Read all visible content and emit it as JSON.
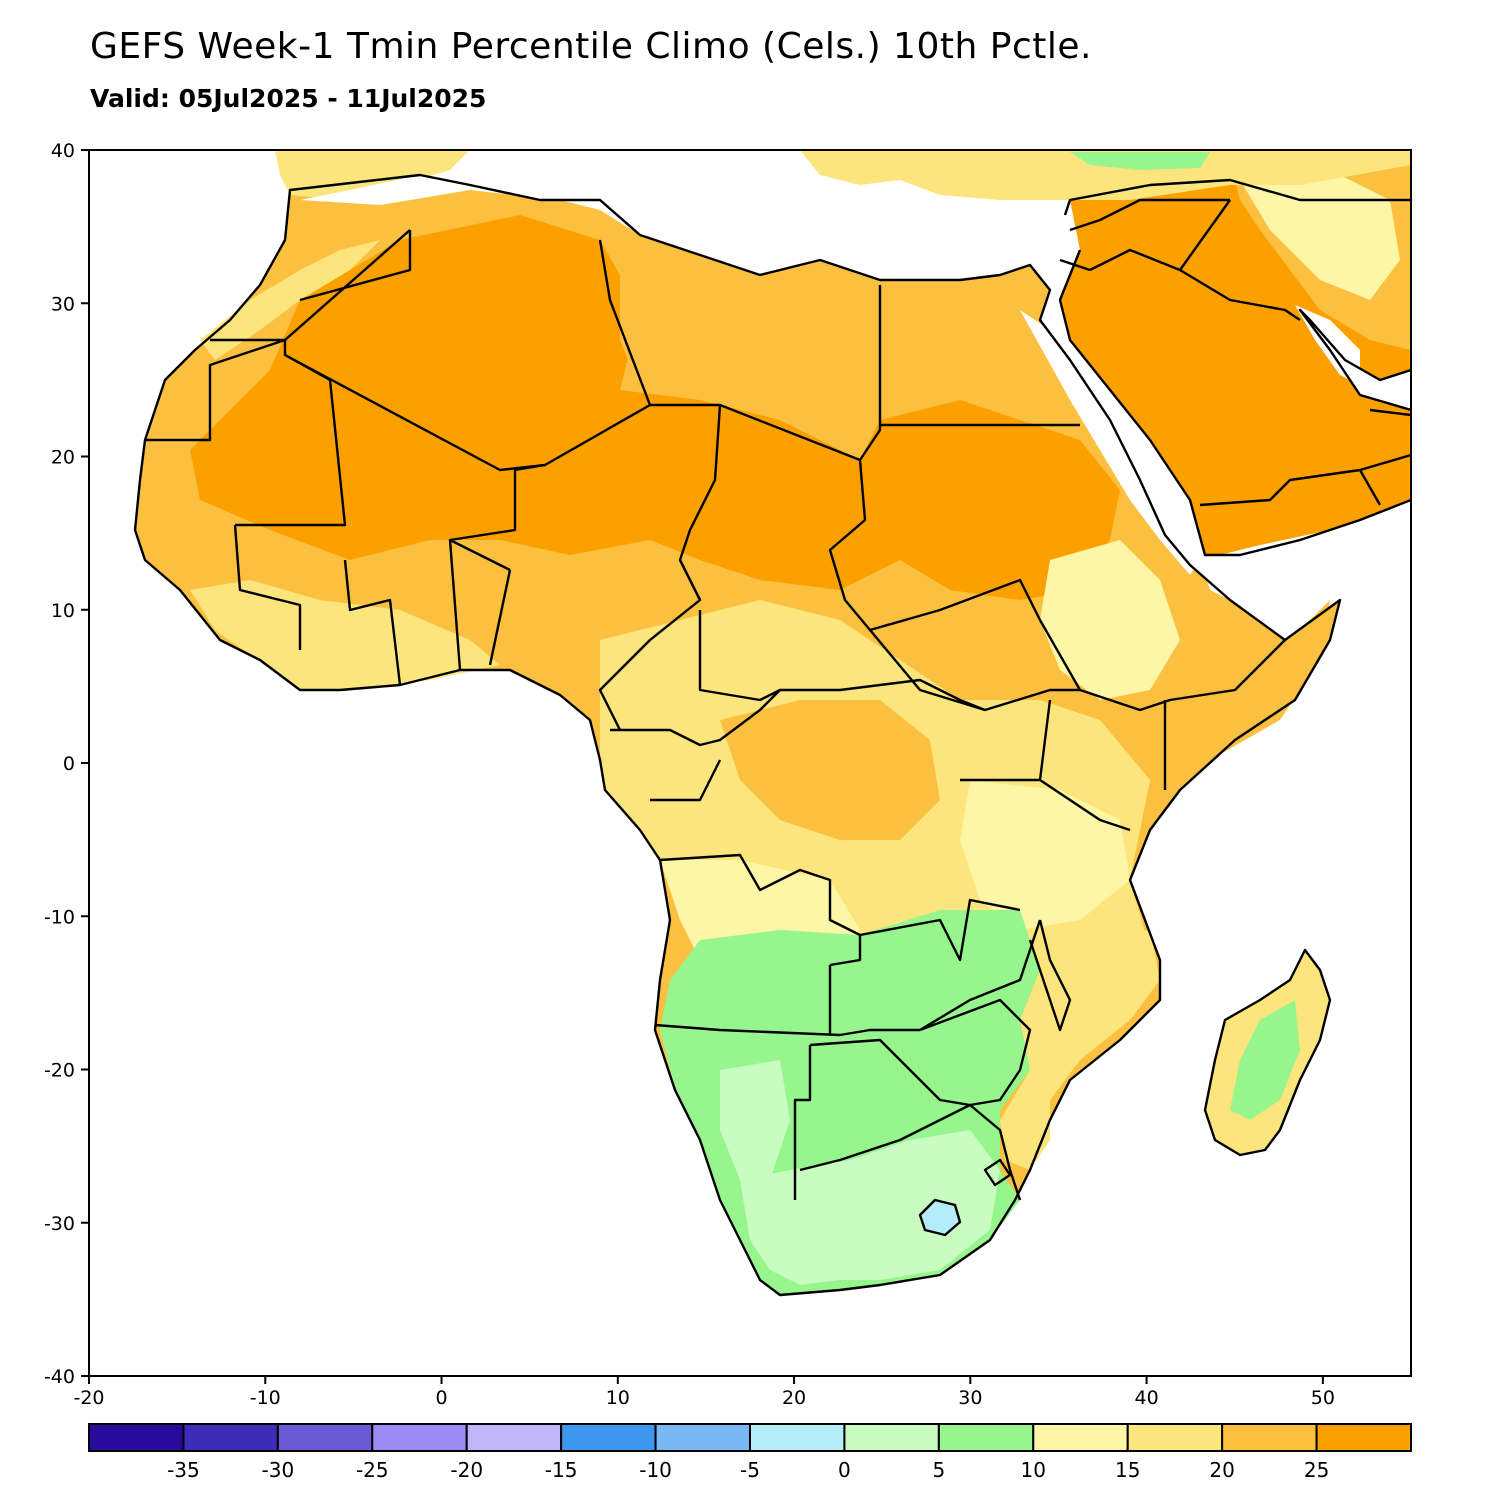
{
  "title": "GEFS Week-1 Tmin Percentile Climo (Cels.) 10th Pctle.",
  "subtitle": "Valid: 05Jul2025 - 11Jul2025",
  "map": {
    "lon_range": [
      -20,
      55
    ],
    "lat_range": [
      -40,
      40
    ],
    "lon_ticks": [
      -20,
      -10,
      0,
      10,
      20,
      30,
      40,
      50
    ],
    "lat_ticks": [
      40,
      30,
      20,
      10,
      0,
      -10,
      -20,
      -30,
      -40
    ],
    "lon_tick_labels": [
      "-20",
      "-10",
      "0",
      "10",
      "20",
      "30",
      "40",
      "50"
    ],
    "lat_tick_labels": [
      "40",
      "30",
      "20",
      "10",
      "0",
      "-10",
      "-20",
      "-30",
      "-40"
    ]
  },
  "colorbar": {
    "colors": [
      "#2a0a9c",
      "#3d2cb8",
      "#6a5ad6",
      "#9d8bf5",
      "#c0b4fa",
      "#3d97f0",
      "#7ab8f5",
      "#b4ecfa",
      "#c8fcc0",
      "#96f58c",
      "#fcf6a6",
      "#fce57c",
      "#fcc040",
      "#fca000"
    ],
    "labels": [
      "-35",
      "-30",
      "-25",
      "-20",
      "-15",
      "-10",
      "-5",
      "0",
      "5",
      "10",
      "15",
      "20",
      "25"
    ]
  },
  "regions": [
    {
      "name": "sahara",
      "color": "#fca000"
    },
    {
      "name": "sahel",
      "color": "#fcc040"
    },
    {
      "name": "tropics",
      "color": "#fce57c"
    },
    {
      "name": "east-africa-highlands",
      "color": "#fcf6a6"
    },
    {
      "name": "southern-plateau",
      "color": "#96f58c"
    },
    {
      "name": "south-africa",
      "color": "#c8fcc0"
    },
    {
      "name": "lesotho",
      "color": "#b4ecfa"
    }
  ]
}
